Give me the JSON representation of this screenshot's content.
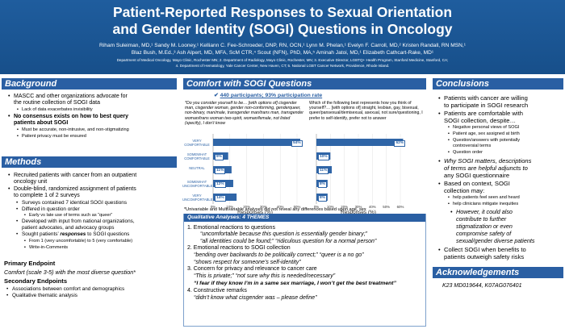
{
  "header": {
    "title_line1": "Patient-Reported Responses to Sexual Orientation",
    "title_line2": "and Gender Identity (SOGI) Questions in Oncology",
    "authors_line1": "Riham Suleiman, MD,¹ Sandy M. Looney,¹ Kelliann C. Fee-Schroeder, DNP, RN, OCN,¹ Lynn M. Phelan,¹ Evelyn F. Carroll, MD,² Kristen Randall, RN MSN,¹",
    "authors_line2": "Blaz Bush, M.Ed.,³ Ash Alpert, MD, MFA, ScM CTR,⁴ Scout (NFN), PhD, MA,⁵ Aminah Jatoi, MD,¹ Elizabeth Cathcart-Rake, MD¹",
    "affil_line1": "Department of Medical Oncology, Mayo Clinic, Rochester MN; 2. Department of Radiology, Mayo Clinic, Rochester, MN; 3. Executive Director, LGBTQ+ Health Program, Stanford Medicine, Stanford, CA;",
    "affil_line2": "4. Department of Hematology, Yale Cancer Center, New Haven, CT; 5. National LGBT Cancer Network, Providence, Rhode Island."
  },
  "background": {
    "heading": "Background",
    "b1_l1": "MASCC and other organizations advocate for",
    "b1_l2": "the routine collection of SOGI data",
    "b1_sub1": "Lack of data exacerbates invisibility",
    "b2_l1": "No consensus exists on how to best query",
    "b2_l2": "patients about SOGI",
    "b2_sub1": "Must be accurate, non-intrusive, and non-stigmatizing",
    "b2_sub2": "Patient privacy must be ensured"
  },
  "methods": {
    "heading": "Methods",
    "b1_l1": "Recruited patients with cancer from an outpatient",
    "b1_l2": "oncology unit",
    "b2_l1": "Double-blind, randomized assignment of patients",
    "b2_l2": "to complete 1 of 2 surveys",
    "sub1": "Surveys contained 7 identical SOGI questions",
    "sub2": "Differed in question order",
    "sub2a": "Early vs late use of terms such as “queer”",
    "sub3_l1": "Developed with input from national organizations,",
    "sub3_l2": "patient advocates, and advocacy groups",
    "sub4_pre": "Sought patients’ ",
    "sub4_it": "responses",
    "sub4_post": " to SOGI questions",
    "sub4a": "From 1 (very uncomfortable) to 5 (very comfortable)",
    "sub4b": "Write-in-Comments",
    "primary_title": "Primary Endpoint",
    "primary_text": "Comfort (scale 3-5) with the most diverse question*",
    "secondary_title": "Secondary Endpoints",
    "sec1": "Associations between comfort and demographics",
    "sec2": "Qualitative thematic analysis"
  },
  "comfort": {
    "heading": "Comfort with SOGI Questions",
    "participants": "440 participants; 93% participation rate",
    "q1": "*Do you consider yourself to be… [with options of] cisgender man, cisgender woman, gender non-conforming, genderqueer, non-binary, man/male, transgender man/trans man, transgender woman/trans woman two-spirit, woman/female, not listed (specify), I don’t know",
    "q2": "Which of the following best represents how you think of yourself?… [with options of] straight, lesbian, gay, bisexual, queer/pansexual/demisexual, asexual, not sure/questioning, I prefer to self-identify, prefer not to answer",
    "footnote": "*Univariable and Multivariable analyses did not reveal any differences based upon age, sex"
  },
  "chart_data": [
    {
      "type": "bar",
      "orientation": "horizontal",
      "categories": [
        "VERY COMFORTABLE",
        "SOMEWHAT COMFORTABLE",
        "NEUTRAL",
        "SOMEWHAT UNCOMFORTABLE",
        "VERY UNCOMFORTABLE"
      ],
      "values": [
        54,
        9,
        11,
        12,
        14
      ],
      "value_labels": [
        "54%",
        "9%",
        "11%",
        "12%",
        "14%"
      ],
      "xlabel": "Responses (%)",
      "xticks": [
        "0%",
        "10%",
        "20%",
        "30%",
        "40%",
        "50%"
      ],
      "xlim": [
        0,
        50
      ]
    },
    {
      "type": "bar",
      "orientation": "horizontal",
      "categories": [
        "VERY COMFORTABLE",
        "SOMEWHAT COMFORTABLE",
        "NEUTRAL",
        "SOMEWHAT UNCOMFORTABLE",
        "VERY UNCOMFORTABLE"
      ],
      "values": [
        62,
        10,
        11,
        8,
        8
      ],
      "value_labels": [
        "62%",
        "10%",
        "11%",
        "8%",
        "8%"
      ],
      "xlabel": "Responses (%)",
      "xticks": [
        "0%",
        "10%",
        "20%",
        "30%",
        "40%",
        "50%",
        "60%"
      ],
      "xlim": [
        0,
        60
      ]
    }
  ],
  "qualitative": {
    "heading": "Qualitative Analyses: 4 THEMES",
    "t1": "1.  Emotional reactions to questions",
    "t1q1": "“uncomfortable because this question is essentially gender binary;”",
    "t1q2": "“all identities could be found;” “ridiculous question for a normal person”",
    "t2": "2.  Emotional reactions to SOGI collection",
    "t2q1": "“bending over backwards to be politically correct;” “queer is a no go”",
    "t2q2": "“shows respect for someone’s self-identity”",
    "t3": "3.  Concern for privacy and relevance to cancer care",
    "t3q1": "“This is private;” “not sure why this is needed/necessary”",
    "t3q2": "“I fear if they know I’m in a same sex marriage, I won’t get the best treatment”",
    "t4": "4.  Constructive remarks",
    "t4q1": "“didn’t know what cisgender was – please define”"
  },
  "conclusions": {
    "heading": "Conclusions",
    "b1_l1": "Patients with cancer are willing",
    "b1_l2": "to participate in SOGI research",
    "b2_l1": "Patients are comfortable with",
    "b2_l2": "SOGI collection, despite…",
    "sub1": "Negative personal views of SOGI",
    "sub2": "Patient age, sex assigned at birth",
    "sub3_l1": "Question/answers with potentially",
    "sub3_l2": "controversial terms",
    "sub4": "Question order",
    "b3_l1": "Why SOGI matters, descriptions",
    "b3_l2": "of terms are helpful adjuncts to",
    "b3_l3": "any SOGI questionnaire",
    "b4_l1": "Based on context, SOGI",
    "b4_l2": "collection may:",
    "b4s1": "help patients feel seen and heard",
    "b4s2": "help clinicians mitigate inequities",
    "b4s3_l1": "However, it could also",
    "b4s3_l2": "contribute to further",
    "b4s3_l3": "stigmatization or even",
    "b4s3_l4": "compromise safety of",
    "b4s3_l5": "sexual/gender diverse patients",
    "b5_l1": "Collect SOGI when benefits to",
    "b5_l2": "patients outweigh safety risks"
  },
  "acknowledgements": {
    "heading": "Acknowledgements",
    "text": "K23 MD019644, K07AG076401"
  }
}
